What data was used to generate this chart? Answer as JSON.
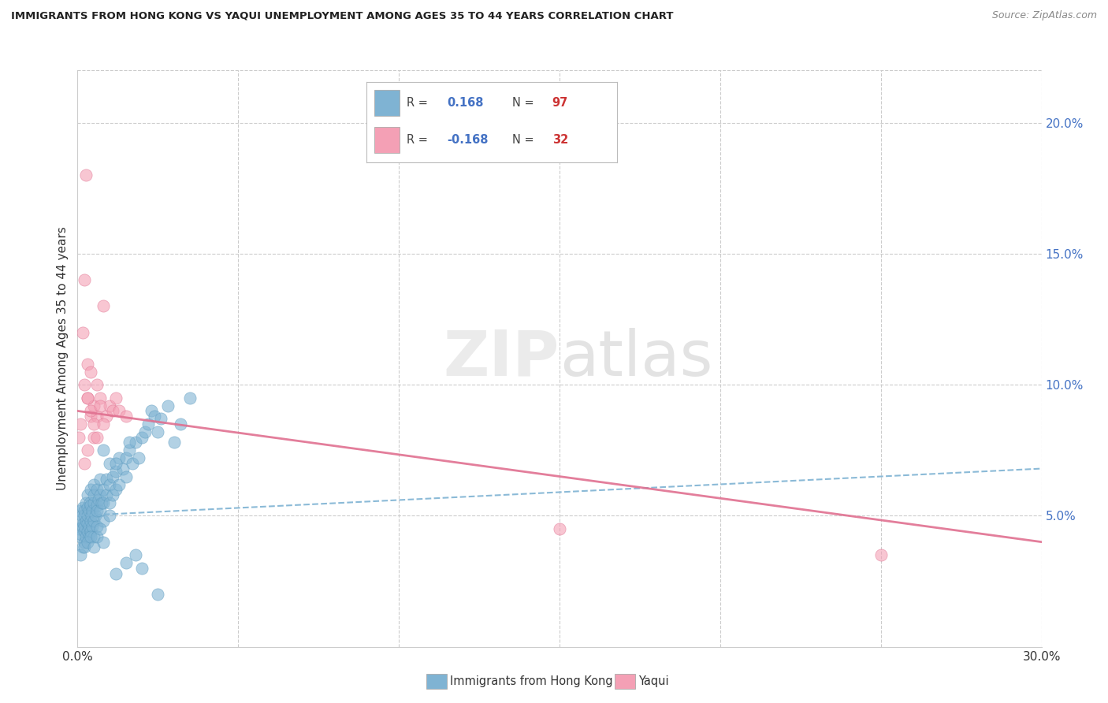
{
  "title": "IMMIGRANTS FROM HONG KONG VS YAQUI UNEMPLOYMENT AMONG AGES 35 TO 44 YEARS CORRELATION CHART",
  "source": "Source: ZipAtlas.com",
  "ylabel": "Unemployment Among Ages 35 to 44 years",
  "xlim": [
    0.0,
    0.3
  ],
  "ylim": [
    0.0,
    0.22
  ],
  "x_ticks": [
    0.0,
    0.05,
    0.1,
    0.15,
    0.2,
    0.25,
    0.3
  ],
  "y_ticks_right": [
    0.05,
    0.1,
    0.15,
    0.2
  ],
  "y_tick_labels_right": [
    "5.0%",
    "10.0%",
    "15.0%",
    "20.0%"
  ],
  "blue_color": "#7fb3d3",
  "blue_edge_color": "#5a9abf",
  "pink_color": "#f4a0b5",
  "pink_edge_color": "#e07090",
  "legend_r_blue": "0.168",
  "legend_n_blue": "97",
  "legend_r_pink": "-0.168",
  "legend_n_pink": "32",
  "blue_scatter_x": [
    0.0005,
    0.0008,
    0.001,
    0.001,
    0.0012,
    0.0013,
    0.0015,
    0.0015,
    0.0015,
    0.0018,
    0.002,
    0.002,
    0.002,
    0.0022,
    0.0022,
    0.0025,
    0.0025,
    0.0025,
    0.003,
    0.003,
    0.003,
    0.003,
    0.0032,
    0.0035,
    0.0035,
    0.0035,
    0.0038,
    0.004,
    0.004,
    0.004,
    0.004,
    0.0042,
    0.0045,
    0.0045,
    0.005,
    0.005,
    0.005,
    0.005,
    0.005,
    0.0055,
    0.006,
    0.006,
    0.006,
    0.006,
    0.0065,
    0.007,
    0.007,
    0.007,
    0.0075,
    0.008,
    0.008,
    0.008,
    0.009,
    0.009,
    0.01,
    0.01,
    0.01,
    0.011,
    0.011,
    0.012,
    0.012,
    0.013,
    0.013,
    0.014,
    0.015,
    0.015,
    0.016,
    0.017,
    0.018,
    0.019,
    0.02,
    0.021,
    0.022,
    0.023,
    0.024,
    0.025,
    0.026,
    0.028,
    0.03,
    0.032,
    0.035,
    0.001,
    0.002,
    0.003,
    0.004,
    0.005,
    0.006,
    0.007,
    0.008,
    0.01,
    0.012,
    0.015,
    0.018,
    0.02,
    0.025,
    0.008,
    0.012,
    0.016
  ],
  "blue_scatter_y": [
    0.045,
    0.042,
    0.048,
    0.052,
    0.043,
    0.05,
    0.046,
    0.053,
    0.038,
    0.047,
    0.044,
    0.05,
    0.04,
    0.052,
    0.046,
    0.048,
    0.055,
    0.042,
    0.047,
    0.053,
    0.058,
    0.044,
    0.05,
    0.046,
    0.052,
    0.042,
    0.055,
    0.048,
    0.054,
    0.06,
    0.044,
    0.05,
    0.052,
    0.046,
    0.055,
    0.048,
    0.062,
    0.042,
    0.058,
    0.05,
    0.054,
    0.06,
    0.046,
    0.052,
    0.056,
    0.058,
    0.052,
    0.064,
    0.055,
    0.06,
    0.048,
    0.055,
    0.058,
    0.064,
    0.062,
    0.055,
    0.07,
    0.065,
    0.058,
    0.06,
    0.067,
    0.062,
    0.072,
    0.068,
    0.072,
    0.065,
    0.075,
    0.07,
    0.078,
    0.072,
    0.08,
    0.082,
    0.085,
    0.09,
    0.088,
    0.082,
    0.087,
    0.092,
    0.078,
    0.085,
    0.095,
    0.035,
    0.038,
    0.04,
    0.042,
    0.038,
    0.042,
    0.045,
    0.04,
    0.05,
    0.028,
    0.032,
    0.035,
    0.03,
    0.02,
    0.075,
    0.07,
    0.078
  ],
  "pink_scatter_x": [
    0.0005,
    0.001,
    0.0015,
    0.002,
    0.002,
    0.0025,
    0.003,
    0.003,
    0.004,
    0.004,
    0.005,
    0.005,
    0.006,
    0.006,
    0.007,
    0.008,
    0.009,
    0.01,
    0.011,
    0.012,
    0.013,
    0.015,
    0.003,
    0.004,
    0.005,
    0.006,
    0.008,
    0.003,
    0.15,
    0.25,
    0.002,
    0.007
  ],
  "pink_scatter_y": [
    0.08,
    0.085,
    0.12,
    0.14,
    0.1,
    0.18,
    0.095,
    0.108,
    0.105,
    0.088,
    0.092,
    0.08,
    0.1,
    0.088,
    0.095,
    0.13,
    0.088,
    0.092,
    0.09,
    0.095,
    0.09,
    0.088,
    0.095,
    0.09,
    0.085,
    0.08,
    0.085,
    0.075,
    0.045,
    0.035,
    0.07,
    0.092
  ],
  "blue_line_x": [
    0.0,
    0.3
  ],
  "blue_line_y": [
    0.05,
    0.068
  ],
  "pink_line_x": [
    0.0,
    0.3
  ],
  "pink_line_y": [
    0.09,
    0.04
  ]
}
